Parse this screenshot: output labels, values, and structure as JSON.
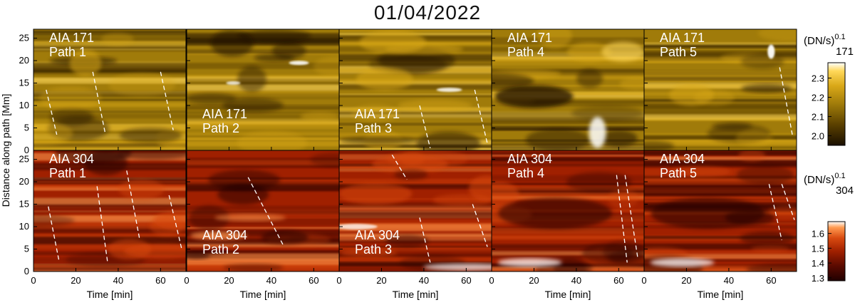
{
  "figure": {
    "title": "01/04/2022",
    "ylabel": "Distance along path [Mm]",
    "xlabel": "Time [min]",
    "yticks": [
      0,
      5,
      10,
      15,
      20,
      25
    ],
    "xticks": [
      0,
      20,
      40,
      60
    ],
    "xlim": [
      0,
      72
    ],
    "ylim": [
      0,
      27
    ]
  },
  "rows": [
    {
      "channel": "AIA 171",
      "colormap": "sdo-aia-171",
      "colorbar": {
        "label": "(DN/s)",
        "exponent": "0.1",
        "wavelength": "171",
        "range": [
          1.95,
          2.38
        ],
        "ticks": [
          "2.0",
          "2.1",
          "2.2",
          "2.3"
        ],
        "tick_values": [
          2.0,
          2.1,
          2.2,
          2.3
        ]
      },
      "colors": {
        "c0": "#1a0f00",
        "c1": "#5a4000",
        "c2": "#a07b0a",
        "c3": "#d9a818",
        "c4": "#ffd85a",
        "c5": "#ffffff"
      }
    },
    {
      "channel": "AIA 304",
      "colormap": "sdo-aia-304",
      "colorbar": {
        "label": "(DN/s)",
        "exponent": "0.1",
        "wavelength": "304",
        "range": [
          1.28,
          1.68
        ],
        "ticks": [
          "1.3",
          "1.4",
          "1.5",
          "1.6"
        ],
        "tick_values": [
          1.3,
          1.4,
          1.5,
          1.6
        ]
      },
      "colors": {
        "c0": "#200000",
        "c1": "#5a0a00",
        "c2": "#a02000",
        "c3": "#d84a10",
        "c4": "#ff9a50",
        "c5": "#ffffff"
      }
    }
  ],
  "chart_data": [
    {
      "type": "heatmap",
      "channel": "AIA 171",
      "path": "Path 1",
      "label_line1": "AIA 171",
      "label_line2": "Path 1",
      "label_position": "top-left",
      "xlim": [
        0,
        72
      ],
      "ylim": [
        0,
        27
      ],
      "dashed_lines": [
        {
          "t": [
            6,
            11
          ],
          "d": [
            13.5,
            3.5
          ]
        },
        {
          "t": [
            28,
            34
          ],
          "d": [
            17.5,
            3.5
          ]
        },
        {
          "t": [
            60,
            66
          ],
          "d": [
            17.5,
            4.5
          ]
        }
      ]
    },
    {
      "type": "heatmap",
      "channel": "AIA 171",
      "path": "Path 2",
      "label_line1": "AIA 171",
      "label_line2": "Path 2",
      "label_position": "bottom-left",
      "xlim": [
        0,
        72
      ],
      "ylim": [
        0,
        27
      ],
      "dashed_lines": []
    },
    {
      "type": "heatmap",
      "channel": "AIA 171",
      "path": "Path 3",
      "label_line1": "AIA 171",
      "label_line2": "Path 3",
      "label_position": "bottom-left",
      "xlim": [
        0,
        72
      ],
      "ylim": [
        0,
        27
      ],
      "dashed_lines": [
        {
          "t": [
            38,
            43
          ],
          "d": [
            10,
            0.5
          ]
        },
        {
          "t": [
            64,
            70
          ],
          "d": [
            13.5,
            1.5
          ]
        }
      ]
    },
    {
      "type": "heatmap",
      "channel": "AIA 171",
      "path": "Path 4",
      "label_line1": "AIA 171",
      "label_line2": "Path 4",
      "label_position": "top-left",
      "xlim": [
        0,
        72
      ],
      "ylim": [
        0,
        27
      ],
      "dashed_lines": []
    },
    {
      "type": "heatmap",
      "channel": "AIA 171",
      "path": "Path 5",
      "label_line1": "AIA 171",
      "label_line2": "Path 5",
      "label_position": "top-left",
      "xlim": [
        0,
        72
      ],
      "ylim": [
        0,
        27
      ],
      "dashed_lines": [
        {
          "t": [
            64,
            70
          ],
          "d": [
            18.5,
            3.5
          ]
        }
      ]
    },
    {
      "type": "heatmap",
      "channel": "AIA 304",
      "path": "Path 1",
      "label_line1": "AIA 304",
      "label_line2": "Path 1",
      "label_position": "top-left",
      "xlim": [
        0,
        72
      ],
      "ylim": [
        0,
        27
      ],
      "dashed_lines": [
        {
          "t": [
            7,
            12
          ],
          "d": [
            14.5,
            2.5
          ]
        },
        {
          "t": [
            30,
            35
          ],
          "d": [
            19,
            2
          ]
        },
        {
          "t": [
            44,
            50
          ],
          "d": [
            22.5,
            7.5
          ]
        },
        {
          "t": [
            64,
            70
          ],
          "d": [
            17,
            5
          ]
        }
      ]
    },
    {
      "type": "heatmap",
      "channel": "AIA 304",
      "path": "Path 2",
      "label_line1": "AIA 304",
      "label_line2": "Path 2",
      "label_position": "bottom-left",
      "xlim": [
        0,
        72
      ],
      "ylim": [
        0,
        27
      ],
      "dashed_lines": [
        {
          "t": [
            29,
            46
          ],
          "d": [
            21,
            5.5
          ]
        }
      ]
    },
    {
      "type": "heatmap",
      "channel": "AIA 304",
      "path": "Path 3",
      "label_line1": "AIA 304",
      "label_line2": "Path 3",
      "label_position": "bottom-left",
      "xlim": [
        0,
        72
      ],
      "ylim": [
        0,
        27
      ],
      "dashed_lines": [
        {
          "t": [
            25,
            32
          ],
          "d": [
            26,
            20.5
          ]
        },
        {
          "t": [
            38,
            43
          ],
          "d": [
            12,
            2
          ]
        },
        {
          "t": [
            63,
            70
          ],
          "d": [
            15,
            5.5
          ]
        }
      ]
    },
    {
      "type": "heatmap",
      "channel": "AIA 304",
      "path": "Path 4",
      "label_line1": "AIA 304",
      "label_line2": "Path 4",
      "label_position": "top-left",
      "xlim": [
        0,
        72
      ],
      "ylim": [
        0,
        27
      ],
      "dashed_lines": [
        {
          "t": [
            59,
            64
          ],
          "d": [
            21.5,
            2
          ]
        },
        {
          "t": [
            63,
            69
          ],
          "d": [
            21.5,
            3
          ]
        }
      ]
    },
    {
      "type": "heatmap",
      "channel": "AIA 304",
      "path": "Path 5",
      "label_line1": "AIA 304",
      "label_line2": "Path 5",
      "label_position": "top-left",
      "xlim": [
        0,
        72
      ],
      "ylim": [
        0,
        27
      ],
      "dashed_lines": [
        {
          "t": [
            59,
            65
          ],
          "d": [
            19.5,
            7
          ]
        },
        {
          "t": [
            65,
            71
          ],
          "d": [
            19.5,
            11.5
          ]
        }
      ]
    }
  ]
}
